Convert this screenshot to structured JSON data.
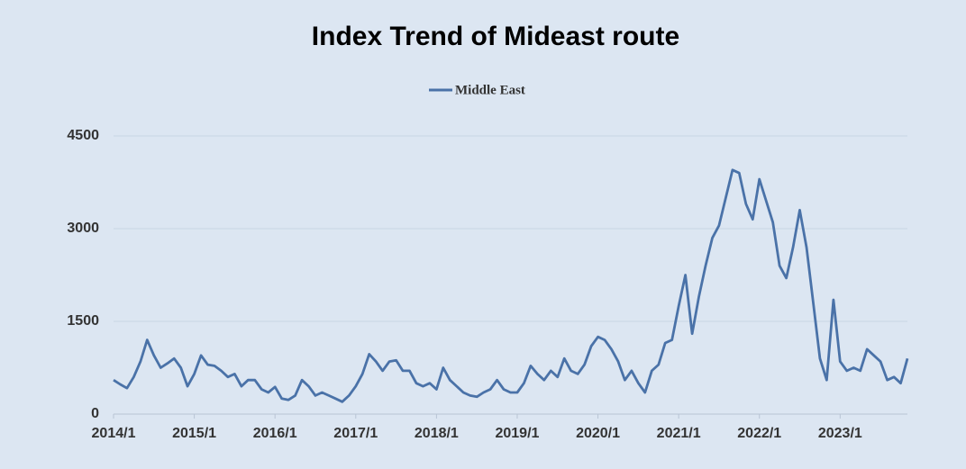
{
  "chart_data": {
    "type": "line",
    "title": "Index Trend of Mideast route",
    "x": [
      "2014/1",
      "2014/2",
      "2014/3",
      "2014/4",
      "2014/5",
      "2014/6",
      "2014/7",
      "2014/8",
      "2014/9",
      "2014/10",
      "2014/11",
      "2014/12",
      "2015/1",
      "2015/2",
      "2015/3",
      "2015/4",
      "2015/5",
      "2015/6",
      "2015/7",
      "2015/8",
      "2015/9",
      "2015/10",
      "2015/11",
      "2015/12",
      "2016/1",
      "2016/2",
      "2016/3",
      "2016/4",
      "2016/5",
      "2016/6",
      "2016/7",
      "2016/8",
      "2016/9",
      "2016/10",
      "2016/11",
      "2016/12",
      "2017/1",
      "2017/2",
      "2017/3",
      "2017/4",
      "2017/5",
      "2017/6",
      "2017/7",
      "2017/8",
      "2017/9",
      "2017/10",
      "2017/11",
      "2017/12",
      "2018/1",
      "2018/2",
      "2018/3",
      "2018/4",
      "2018/5",
      "2018/6",
      "2018/7",
      "2018/8",
      "2018/9",
      "2018/10",
      "2018/11",
      "2018/12",
      "2019/1",
      "2019/2",
      "2019/3",
      "2019/4",
      "2019/5",
      "2019/6",
      "2019/7",
      "2019/8",
      "2019/9",
      "2019/10",
      "2019/11",
      "2019/12",
      "2020/1",
      "2020/2",
      "2020/3",
      "2020/4",
      "2020/5",
      "2020/6",
      "2020/7",
      "2020/8",
      "2020/9",
      "2020/10",
      "2020/11",
      "2020/12",
      "2021/1",
      "2021/2",
      "2021/3",
      "2021/4",
      "2021/5",
      "2021/6",
      "2021/7",
      "2021/8",
      "2021/9",
      "2021/10",
      "2021/11",
      "2021/12",
      "2022/1",
      "2022/2",
      "2022/3",
      "2022/4",
      "2022/5",
      "2022/6",
      "2022/7",
      "2022/8",
      "2022/9",
      "2022/10",
      "2022/11",
      "2022/12",
      "2023/1",
      "2023/2",
      "2023/3",
      "2023/4",
      "2023/5",
      "2023/6",
      "2023/7",
      "2023/8",
      "2023/9",
      "2023/10",
      "2023/11"
    ],
    "series": [
      {
        "name": "Middle East",
        "color": "#4a72a8",
        "values": [
          550,
          480,
          420,
          600,
          850,
          1200,
          950,
          750,
          820,
          900,
          750,
          450,
          650,
          950,
          800,
          780,
          700,
          600,
          650,
          450,
          550,
          550,
          400,
          350,
          440,
          250,
          230,
          300,
          550,
          450,
          300,
          350,
          300,
          250,
          200,
          300,
          450,
          650,
          970,
          850,
          700,
          850,
          870,
          700,
          700,
          500,
          450,
          500,
          400,
          750,
          550,
          450,
          350,
          300,
          280,
          350,
          400,
          550,
          400,
          350,
          350,
          500,
          780,
          650,
          550,
          700,
          600,
          900,
          700,
          650,
          800,
          1100,
          1250,
          1200,
          1050,
          850,
          550,
          700,
          500,
          350,
          700,
          800,
          1150,
          1200,
          1750,
          2250,
          1300,
          1900,
          2400,
          2850,
          3050,
          3500,
          3950,
          3900,
          3400,
          3150,
          3800,
          3450,
          3100,
          2400,
          2200,
          2700,
          3300,
          2700,
          1800,
          900,
          550,
          1850,
          850,
          700,
          750,
          700,
          1050,
          950,
          850,
          550,
          600,
          500,
          900
        ]
      }
    ],
    "xticks": [
      "2014/1",
      "2015/1",
      "2016/1",
      "2017/1",
      "2018/1",
      "2019/1",
      "2020/1",
      "2021/1",
      "2022/1",
      "2023/1"
    ],
    "ylim": [
      0,
      4500
    ],
    "yticks": [
      0,
      1500,
      3000,
      4500
    ],
    "grid": true
  }
}
